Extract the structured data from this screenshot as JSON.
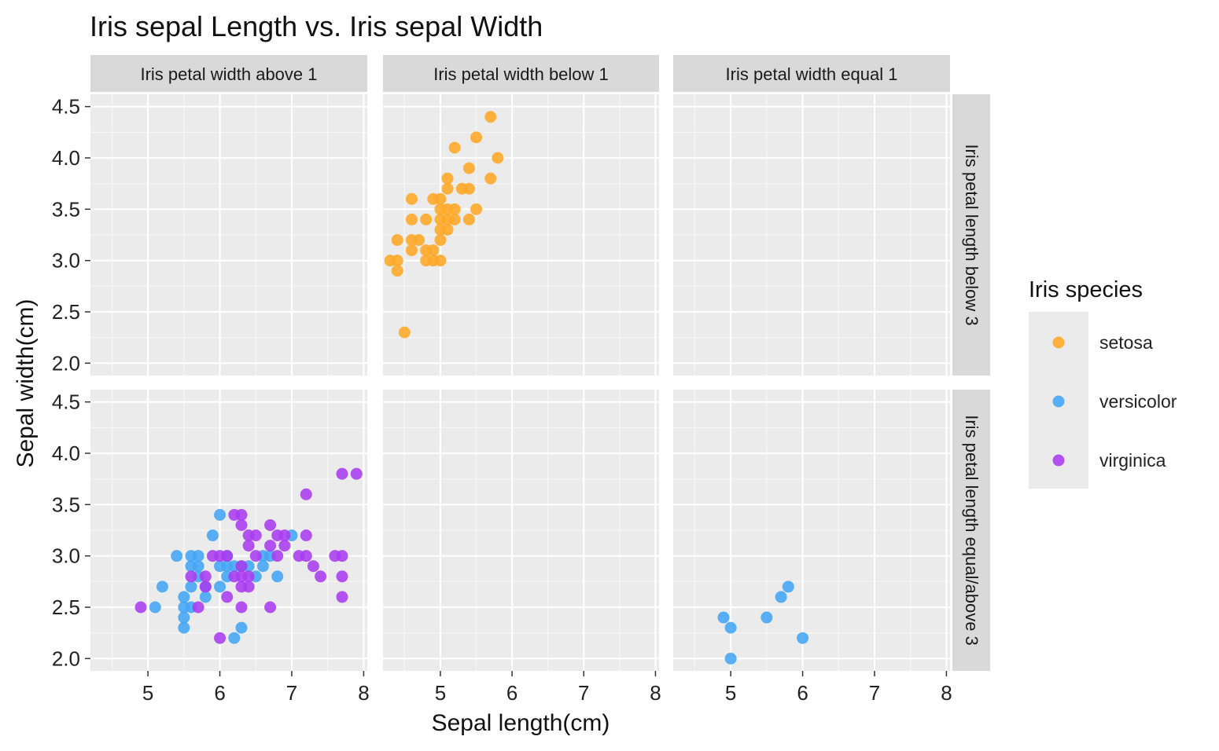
{
  "chart_data": {
    "type": "scatter",
    "title": "Iris sepal Length vs. Iris sepal Width",
    "xlabel": "Sepal length(cm)",
    "ylabel": "Sepal width(cm)",
    "xlim": [
      4.2,
      8.05
    ],
    "ylim": [
      1.88,
      4.62
    ],
    "x_ticks": [
      5,
      6,
      7,
      8
    ],
    "y_ticks": [
      2.0,
      2.5,
      3.0,
      3.5,
      4.0,
      4.5
    ],
    "grid": true,
    "legend": {
      "title": "Iris species",
      "position": "right",
      "entries": [
        {
          "name": "setosa",
          "color": "#FFA726"
        },
        {
          "name": "versicolor",
          "color": "#42A5F5"
        },
        {
          "name": "virginica",
          "color": "#A83CF0"
        }
      ]
    },
    "facets": {
      "col_labels": [
        "Iris petal width above 1",
        "Iris petal width below 1",
        "Iris petal width equal 1"
      ],
      "row_labels": [
        "Iris petal length below 3",
        "Iris petal length equal/above 3"
      ]
    },
    "panels": [
      {
        "row": 0,
        "col": 1,
        "series": [
          {
            "name": "setosa",
            "points": [
              [
                5.7,
                4.4
              ],
              [
                5.5,
                4.2
              ],
              [
                5.2,
                4.1
              ],
              [
                5.8,
                4.0
              ],
              [
                5.4,
                3.9
              ],
              [
                5.7,
                3.8
              ],
              [
                5.1,
                3.8
              ],
              [
                5.1,
                3.7
              ],
              [
                5.3,
                3.7
              ],
              [
                5.4,
                3.7
              ],
              [
                4.6,
                3.6
              ],
              [
                4.9,
                3.6
              ],
              [
                5.0,
                3.6
              ],
              [
                5.0,
                3.5
              ],
              [
                5.1,
                3.5
              ],
              [
                5.2,
                3.5
              ],
              [
                5.5,
                3.5
              ],
              [
                4.6,
                3.4
              ],
              [
                4.8,
                3.4
              ],
              [
                5.0,
                3.4
              ],
              [
                5.1,
                3.4
              ],
              [
                5.2,
                3.4
              ],
              [
                5.4,
                3.4
              ],
              [
                5.0,
                3.3
              ],
              [
                5.1,
                3.3
              ],
              [
                4.4,
                3.2
              ],
              [
                4.6,
                3.2
              ],
              [
                4.7,
                3.2
              ],
              [
                5.0,
                3.2
              ],
              [
                4.6,
                3.1
              ],
              [
                4.8,
                3.1
              ],
              [
                4.9,
                3.1
              ],
              [
                4.4,
                3.0
              ],
              [
                4.3,
                3.0
              ],
              [
                4.8,
                3.0
              ],
              [
                4.9,
                3.0
              ],
              [
                5.0,
                3.0
              ],
              [
                4.4,
                2.9
              ],
              [
                4.5,
                2.3
              ]
            ]
          }
        ]
      },
      {
        "row": 1,
        "col": 0,
        "series": [
          {
            "name": "versicolor",
            "points": [
              [
                6.0,
                3.4
              ],
              [
                5.9,
                3.2
              ],
              [
                7.0,
                3.2
              ],
              [
                5.4,
                3.0
              ],
              [
                5.6,
                3.0
              ],
              [
                5.7,
                3.0
              ],
              [
                6.1,
                3.0
              ],
              [
                6.6,
                3.0
              ],
              [
                6.7,
                3.0
              ],
              [
                5.6,
                2.9
              ],
              [
                5.7,
                2.9
              ],
              [
                6.0,
                2.9
              ],
              [
                6.1,
                2.9
              ],
              [
                6.2,
                2.9
              ],
              [
                6.3,
                2.9
              ],
              [
                6.4,
                2.9
              ],
              [
                6.6,
                2.9
              ],
              [
                5.7,
                2.8
              ],
              [
                6.1,
                2.8
              ],
              [
                6.5,
                2.8
              ],
              [
                6.8,
                2.8
              ],
              [
                5.2,
                2.7
              ],
              [
                5.6,
                2.7
              ],
              [
                5.8,
                2.7
              ],
              [
                6.0,
                2.7
              ],
              [
                5.5,
                2.6
              ],
              [
                5.8,
                2.6
              ],
              [
                5.1,
                2.5
              ],
              [
                5.5,
                2.5
              ],
              [
                5.6,
                2.5
              ],
              [
                5.5,
                2.4
              ],
              [
                5.5,
                2.3
              ],
              [
                6.3,
                2.3
              ],
              [
                6.2,
                2.2
              ]
            ]
          },
          {
            "name": "virginica",
            "points": [
              [
                7.7,
                3.8
              ],
              [
                7.9,
                3.8
              ],
              [
                7.2,
                3.6
              ],
              [
                6.2,
                3.4
              ],
              [
                6.3,
                3.4
              ],
              [
                6.3,
                3.3
              ],
              [
                6.7,
                3.3
              ],
              [
                6.4,
                3.2
              ],
              [
                6.5,
                3.2
              ],
              [
                6.8,
                3.2
              ],
              [
                6.9,
                3.2
              ],
              [
                7.2,
                3.2
              ],
              [
                6.4,
                3.1
              ],
              [
                6.7,
                3.1
              ],
              [
                6.9,
                3.1
              ],
              [
                5.9,
                3.0
              ],
              [
                6.0,
                3.0
              ],
              [
                6.1,
                3.0
              ],
              [
                6.5,
                3.0
              ],
              [
                6.8,
                3.0
              ],
              [
                7.1,
                3.0
              ],
              [
                7.2,
                3.0
              ],
              [
                7.6,
                3.0
              ],
              [
                7.7,
                3.0
              ],
              [
                6.3,
                2.9
              ],
              [
                7.3,
                2.9
              ],
              [
                5.6,
                2.8
              ],
              [
                5.8,
                2.8
              ],
              [
                6.2,
                2.8
              ],
              [
                6.3,
                2.8
              ],
              [
                6.4,
                2.8
              ],
              [
                7.4,
                2.8
              ],
              [
                7.7,
                2.8
              ],
              [
                5.8,
                2.7
              ],
              [
                6.3,
                2.7
              ],
              [
                6.4,
                2.7
              ],
              [
                6.1,
                2.6
              ],
              [
                7.7,
                2.6
              ],
              [
                4.9,
                2.5
              ],
              [
                5.7,
                2.5
              ],
              [
                6.3,
                2.5
              ],
              [
                6.7,
                2.5
              ],
              [
                6.0,
                2.2
              ]
            ]
          }
        ]
      },
      {
        "row": 1,
        "col": 2,
        "series": [
          {
            "name": "versicolor",
            "points": [
              [
                5.8,
                2.7
              ],
              [
                5.7,
                2.6
              ],
              [
                4.9,
                2.4
              ],
              [
                5.5,
                2.4
              ],
              [
                5.0,
                2.3
              ],
              [
                6.0,
                2.2
              ],
              [
                5.0,
                2.0
              ]
            ]
          }
        ]
      }
    ]
  }
}
